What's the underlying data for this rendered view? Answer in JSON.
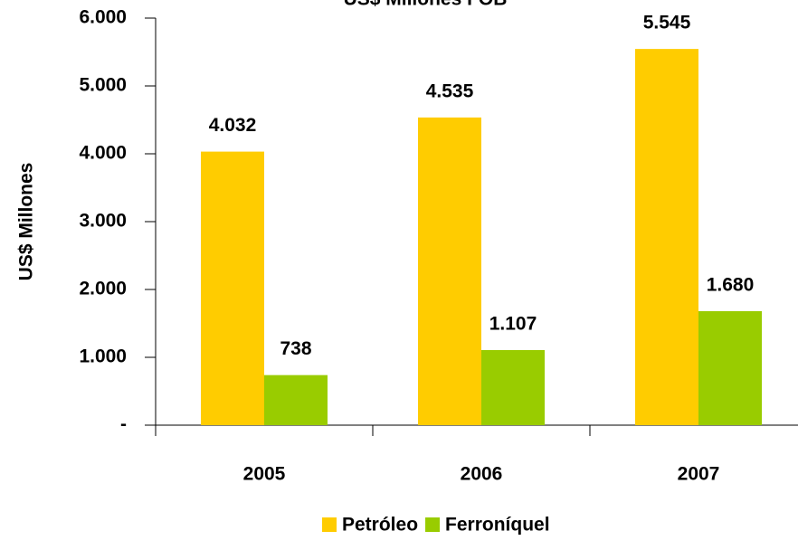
{
  "chart_data": {
    "type": "bar",
    "title": "US$ Millones FOB",
    "y_label": "US$ Millones",
    "categories": [
      "2005",
      "2006",
      "2007"
    ],
    "series": [
      {
        "name": "Petróleo",
        "color": "#FFCC00",
        "values": [
          4032,
          4535,
          5545
        ],
        "value_labels": [
          "4.032",
          "4.535",
          "5.545"
        ]
      },
      {
        "name": "Ferroníquel",
        "color": "#99CC00",
        "values": [
          738,
          1107,
          1680
        ],
        "value_labels": [
          "738",
          "1.107",
          "1.680"
        ]
      }
    ],
    "ylim": [
      0,
      6000
    ],
    "yticks": [
      {
        "value": 0,
        "label": "-"
      },
      {
        "value": 1000,
        "label": "1.000"
      },
      {
        "value": 2000,
        "label": "2.000"
      },
      {
        "value": 3000,
        "label": "3.000"
      },
      {
        "value": 4000,
        "label": "4.000"
      },
      {
        "value": 5000,
        "label": "5.000"
      },
      {
        "value": 6000,
        "label": "6.000"
      }
    ],
    "legend": "bottom"
  }
}
